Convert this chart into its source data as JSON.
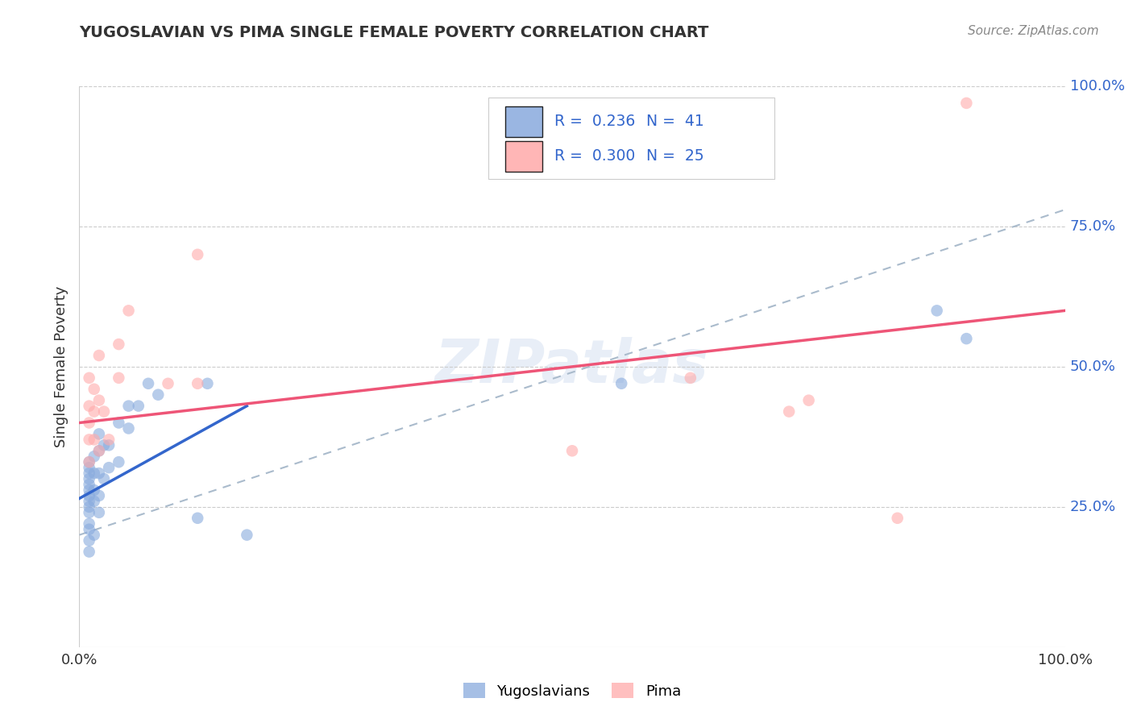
{
  "title": "YUGOSLAVIAN VS PIMA SINGLE FEMALE POVERTY CORRELATION CHART",
  "source": "Source: ZipAtlas.com",
  "ylabel": "Single Female Poverty",
  "xlim": [
    0.0,
    1.0
  ],
  "ylim": [
    0.0,
    1.0
  ],
  "ytick_positions": [
    0.25,
    0.5,
    0.75,
    1.0
  ],
  "ytick_labels": [
    "25.0%",
    "50.0%",
    "75.0%",
    "100.0%"
  ],
  "watermark": "ZIPatlas",
  "blue_color": "#88AADD",
  "pink_color": "#FFAAAA",
  "blue_line_color": "#3366CC",
  "pink_line_color": "#EE5577",
  "dashed_line_color": "#AABBCC",
  "blue_scatter": [
    [
      0.01,
      0.17
    ],
    [
      0.01,
      0.19
    ],
    [
      0.01,
      0.21
    ],
    [
      0.01,
      0.22
    ],
    [
      0.01,
      0.24
    ],
    [
      0.01,
      0.25
    ],
    [
      0.01,
      0.26
    ],
    [
      0.01,
      0.27
    ],
    [
      0.01,
      0.28
    ],
    [
      0.01,
      0.29
    ],
    [
      0.01,
      0.3
    ],
    [
      0.01,
      0.31
    ],
    [
      0.01,
      0.32
    ],
    [
      0.01,
      0.33
    ],
    [
      0.015,
      0.2
    ],
    [
      0.015,
      0.26
    ],
    [
      0.015,
      0.28
    ],
    [
      0.015,
      0.31
    ],
    [
      0.015,
      0.34
    ],
    [
      0.02,
      0.24
    ],
    [
      0.02,
      0.27
    ],
    [
      0.02,
      0.31
    ],
    [
      0.02,
      0.35
    ],
    [
      0.02,
      0.38
    ],
    [
      0.025,
      0.3
    ],
    [
      0.025,
      0.36
    ],
    [
      0.03,
      0.32
    ],
    [
      0.03,
      0.36
    ],
    [
      0.04,
      0.33
    ],
    [
      0.04,
      0.4
    ],
    [
      0.05,
      0.39
    ],
    [
      0.05,
      0.43
    ],
    [
      0.06,
      0.43
    ],
    [
      0.07,
      0.47
    ],
    [
      0.08,
      0.45
    ],
    [
      0.12,
      0.23
    ],
    [
      0.13,
      0.47
    ],
    [
      0.17,
      0.2
    ],
    [
      0.55,
      0.47
    ],
    [
      0.87,
      0.6
    ],
    [
      0.9,
      0.55
    ]
  ],
  "pink_scatter": [
    [
      0.01,
      0.33
    ],
    [
      0.01,
      0.37
    ],
    [
      0.01,
      0.4
    ],
    [
      0.01,
      0.43
    ],
    [
      0.01,
      0.48
    ],
    [
      0.015,
      0.37
    ],
    [
      0.015,
      0.42
    ],
    [
      0.015,
      0.46
    ],
    [
      0.02,
      0.35
    ],
    [
      0.02,
      0.44
    ],
    [
      0.02,
      0.52
    ],
    [
      0.025,
      0.42
    ],
    [
      0.03,
      0.37
    ],
    [
      0.04,
      0.48
    ],
    [
      0.04,
      0.54
    ],
    [
      0.05,
      0.6
    ],
    [
      0.09,
      0.47
    ],
    [
      0.12,
      0.7
    ],
    [
      0.12,
      0.47
    ],
    [
      0.5,
      0.35
    ],
    [
      0.62,
      0.48
    ],
    [
      0.72,
      0.42
    ],
    [
      0.74,
      0.44
    ],
    [
      0.83,
      0.23
    ],
    [
      0.9,
      0.97
    ]
  ],
  "blue_line_x": [
    0.0,
    0.17
  ],
  "blue_line_y": [
    0.265,
    0.43
  ],
  "pink_line_x": [
    0.0,
    1.0
  ],
  "pink_line_y": [
    0.4,
    0.6
  ],
  "dashed_line_x": [
    0.0,
    1.0
  ],
  "dashed_line_y": [
    0.2,
    0.78
  ],
  "figsize": [
    14.06,
    8.92
  ],
  "dpi": 100
}
